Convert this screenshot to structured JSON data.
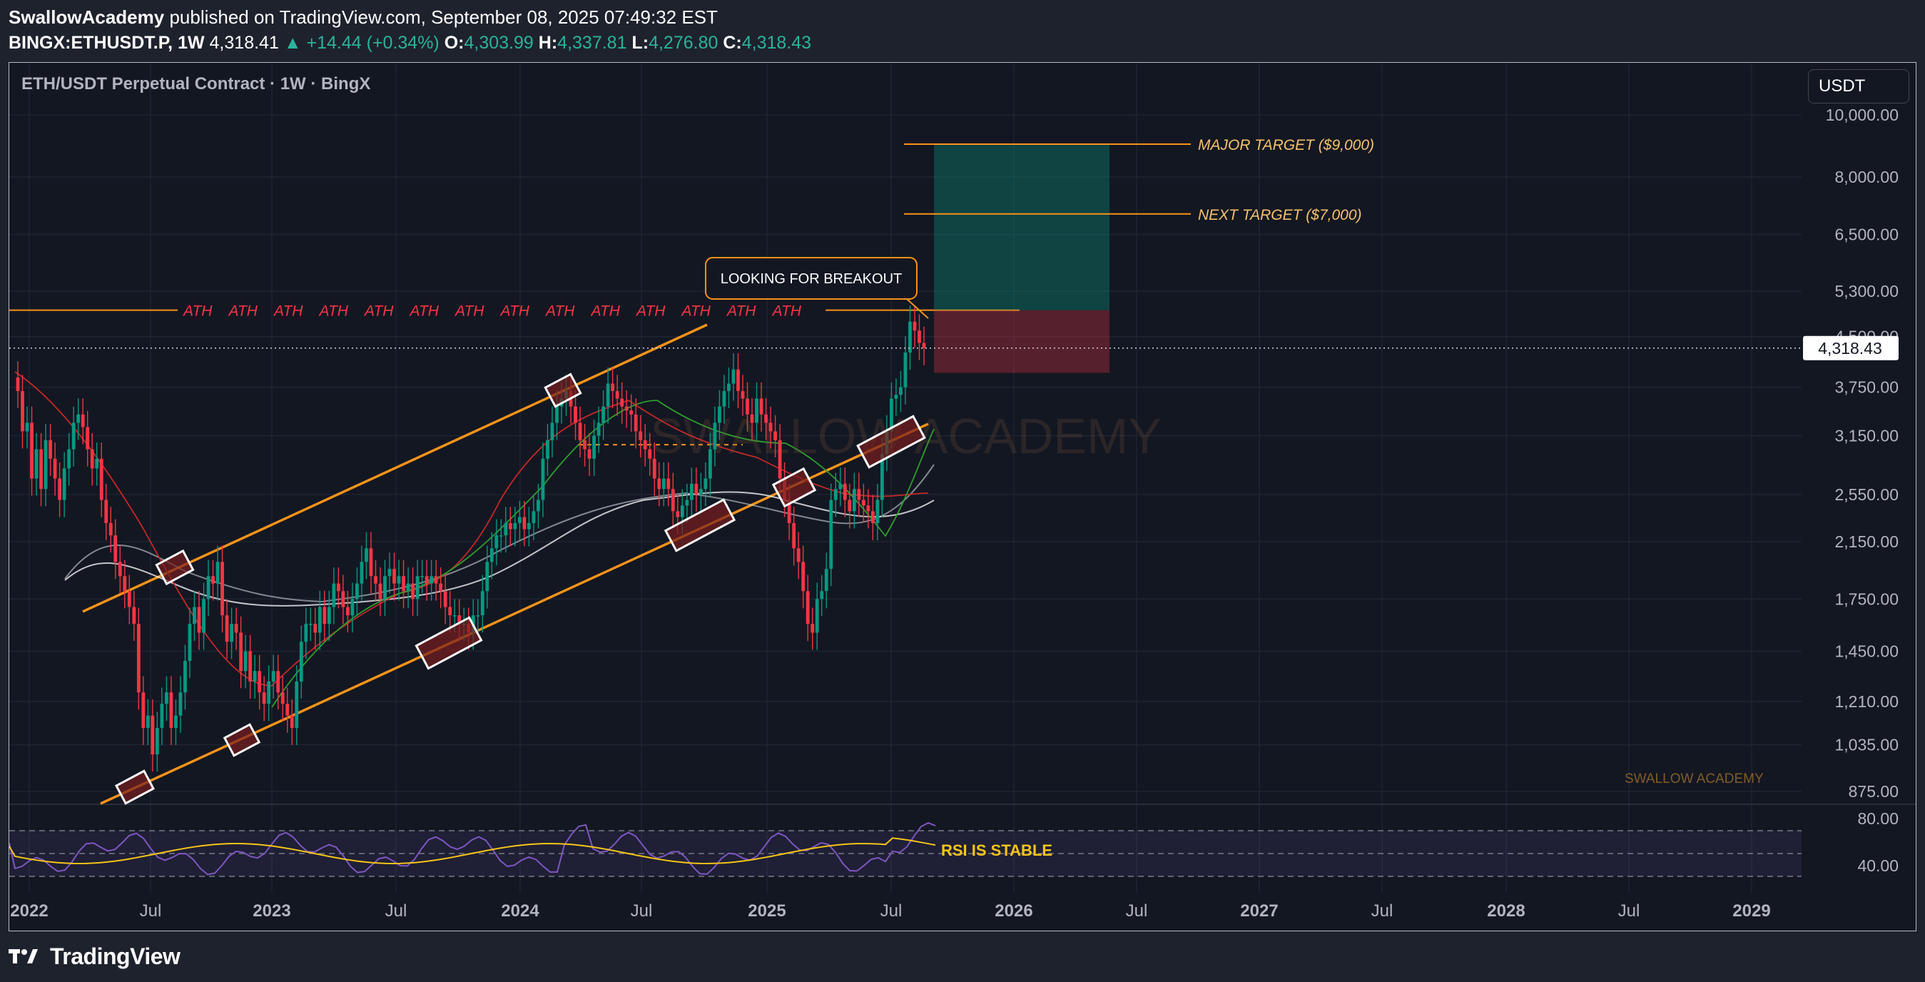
{
  "header": {
    "author": "SwallowAcademy",
    "published": "published on TradingView.com, September 08, 2025 07:49:32 EST",
    "symbol": "BINGX:ETHUSDT.P, 1W",
    "last": "4,318.41",
    "change": "+14.44 (+0.34%)",
    "o_label": "O:",
    "o": "4,303.99",
    "h_label": "H:",
    "h": "4,337.81",
    "l_label": "L:",
    "l": "4,276.80",
    "c_label": "C:",
    "c": "4,318.43"
  },
  "legend_title": "ETH/USDT Perpetual Contract · 1W · BingX",
  "currency_button": "USDT",
  "footer": {
    "brand": "TradingView"
  },
  "chart_data": {
    "type": "candlestick",
    "y_scale": "log",
    "ylim": [
      800,
      11000
    ],
    "price_ticks": [
      "10,000.00",
      "8,000.00",
      "6,500.00",
      "5,300.00",
      "4,500.00",
      "3,750.00",
      "3,150.00",
      "2,550.00",
      "2,150.00",
      "1,750.00",
      "1,450.00",
      "1,210.00",
      "1,035.00",
      "875.00"
    ],
    "time_ticks": [
      "2022",
      "Jul",
      "2023",
      "Jul",
      "2024",
      "Jul",
      "2025",
      "Jul",
      "2026",
      "Jul",
      "2027",
      "Jul",
      "2028",
      "Jul",
      "2029"
    ],
    "current_price_label": "4,318.43",
    "ath_level": 4950,
    "ath_labels": [
      "ATH",
      "ATH",
      "ATH",
      "ATH",
      "ATH",
      "ATH",
      "ATH",
      "ATH",
      "ATH",
      "ATH",
      "ATH",
      "ATH",
      "ATH",
      "ATH"
    ],
    "targets": [
      {
        "label": "MAJOR TARGET ($9,000)",
        "price": 9000
      },
      {
        "label": "NEXT TARGET ($7,000)",
        "price": 7000
      }
    ],
    "breakout_callout": "LOOKING FOR BREAKOUT",
    "watermark": "SWALLOW ACADEMY",
    "corner_brand": "SWALLOW ACADEMY",
    "weekly_closes": [
      3700,
      3200,
      3300,
      2700,
      3000,
      2600,
      3100,
      2900,
      2700,
      2500,
      2800,
      3000,
      3300,
      3400,
      3250,
      3000,
      2800,
      2900,
      2500,
      2300,
      2200,
      2000,
      1900,
      1800,
      1700,
      1600,
      1250,
      1100,
      1150,
      1000,
      1100,
      1200,
      1250,
      1100,
      1150,
      1250,
      1400,
      1600,
      1700,
      1550,
      1750,
      1900,
      1850,
      2000,
      1650,
      1500,
      1600,
      1550,
      1350,
      1450,
      1300,
      1350,
      1250,
      1200,
      1300,
      1350,
      1250,
      1200,
      1150,
      1100,
      1300,
      1500,
      1600,
      1600,
      1550,
      1700,
      1600,
      1700,
      1850,
      1800,
      1700,
      1650,
      1750,
      1850,
      2000,
      2100,
      1900,
      1850,
      1750,
      1900,
      1950,
      1850,
      1900,
      1800,
      1850,
      1750,
      1900,
      1900,
      1850,
      1900,
      1850,
      1800,
      1700,
      1650,
      1650,
      1600,
      1600,
      1550,
      1650,
      1650,
      1800,
      2000,
      2100,
      2200,
      2200,
      2300,
      2250,
      2300,
      2350,
      2250,
      2300,
      2400,
      2500,
      2900,
      3100,
      3300,
      3500,
      3600,
      3700,
      3500,
      3300,
      3100,
      3000,
      2900,
      3150,
      3300,
      3500,
      3800,
      3700,
      3600,
      3500,
      3450,
      3400,
      3200,
      3100,
      3000,
      2900,
      2700,
      2600,
      2700,
      2600,
      2400,
      2350,
      2450,
      2500,
      2650,
      2550,
      2600,
      2700,
      3000,
      3300,
      3500,
      3700,
      3800,
      4000,
      3700,
      3600,
      3400,
      3300,
      3600,
      3400,
      3300,
      3200,
      3100,
      2700,
      2500,
      2300,
      2100,
      2000,
      1800,
      1600,
      1550,
      1750,
      1800,
      1950,
      2500,
      2600,
      2650,
      2500,
      2400,
      2600,
      2500,
      2450,
      2400,
      2300,
      2500,
      2950,
      3200,
      3600,
      3650,
      3750,
      4250,
      4750,
      4600,
      4400,
      4318
    ]
  }
}
